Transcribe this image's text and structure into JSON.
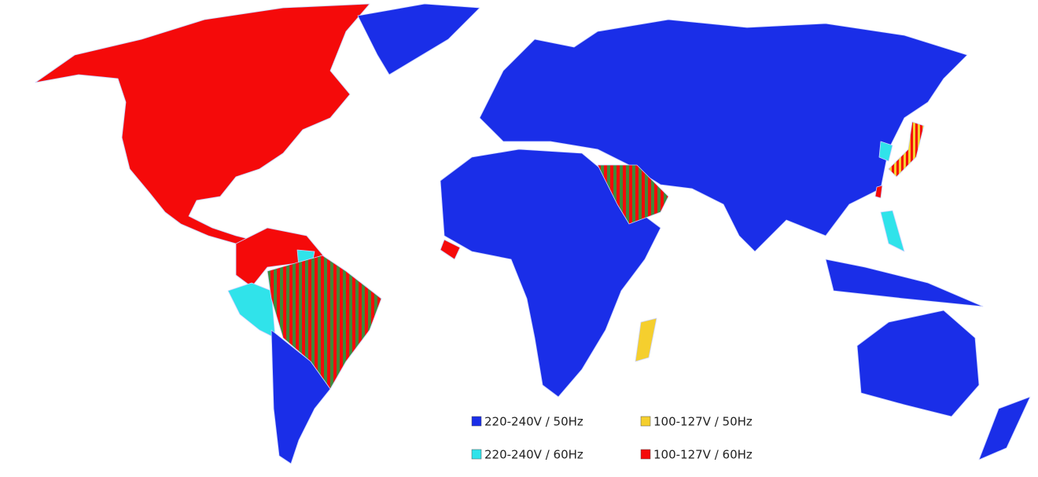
{
  "legend": [
    {
      "label": "220-240V / 50Hz",
      "color": "#1a2ee8"
    },
    {
      "label": "100-127V / 50Hz",
      "color": "#f5cf2e"
    },
    {
      "label": "220-240V / 60Hz",
      "color": "#30e3ea"
    },
    {
      "label": "100-127V / 60Hz",
      "color": "#f50a0a"
    }
  ]
}
